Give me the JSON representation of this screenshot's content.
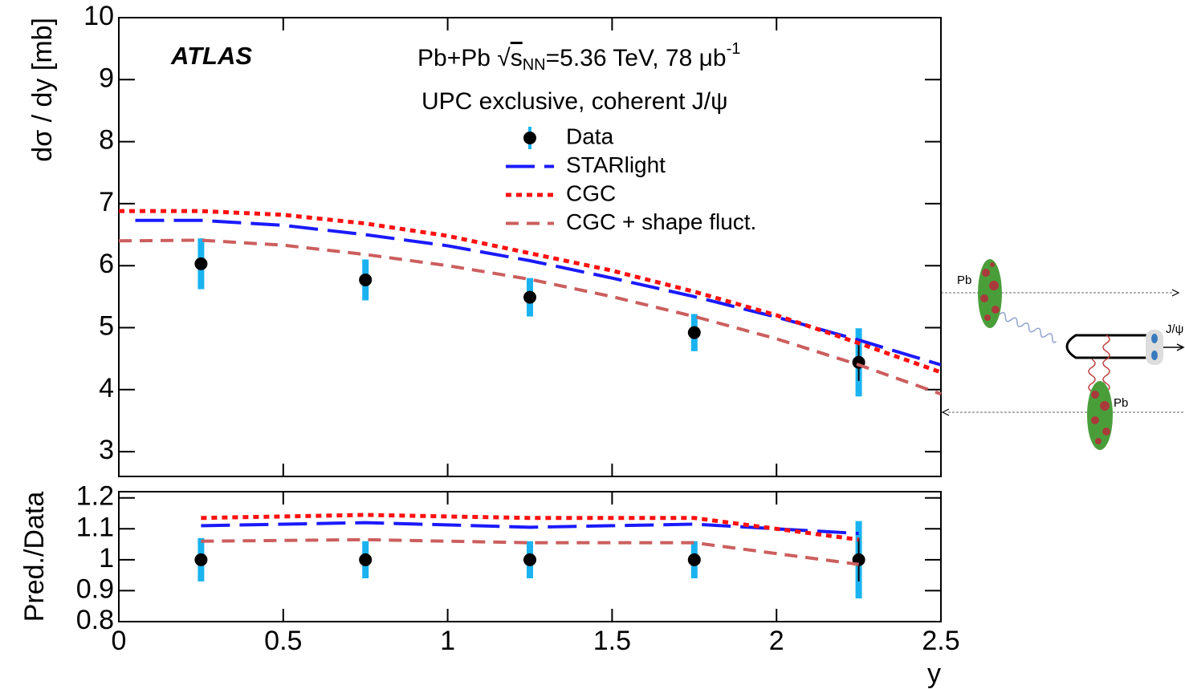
{
  "chart_data": [
    {
      "type": "line",
      "title_lines": [
        "ATLAS"
      ],
      "energy_label": [
        "Pb+Pb ",
        "√",
        "s",
        "NN",
        "=5.36 TeV, 78 μb",
        "-1"
      ],
      "process_label": "UPC exclusive, coherent J/ψ",
      "ylabel": "dσ / dy [mb]",
      "xlim": [
        0,
        2.5
      ],
      "ylim": [
        2.6,
        10
      ],
      "yticks": [
        3,
        4,
        5,
        6,
        7,
        8,
        9,
        10
      ],
      "legend": "top-center",
      "series": [
        {
          "name": "Data",
          "color": "#000000",
          "marker": true,
          "error_color": "#1ab3f0",
          "x": [
            0.25,
            0.75,
            1.25,
            1.75,
            2.25
          ],
          "values": [
            6.03,
            5.77,
            5.49,
            4.92,
            4.44
          ],
          "syst_errors": [
            0.41,
            0.33,
            0.31,
            0.3,
            0.55
          ],
          "stat_errors": [
            0.03,
            0.03,
            0.03,
            0.03,
            0.3
          ]
        },
        {
          "name": "STARlight",
          "color": "#1a1aff",
          "dash": "long",
          "x": [
            0.05,
            0.25,
            0.5,
            0.75,
            1.0,
            1.25,
            1.5,
            1.75,
            2.0,
            2.25,
            2.5
          ],
          "values": [
            6.73,
            6.73,
            6.65,
            6.5,
            6.32,
            6.08,
            5.8,
            5.5,
            5.17,
            4.8,
            4.4
          ]
        },
        {
          "name": "CGC",
          "color": "#ff1010",
          "dash": "dotted",
          "x": [
            0,
            0.25,
            0.5,
            0.75,
            1.0,
            1.25,
            1.5,
            1.75,
            2.0,
            2.25,
            2.5
          ],
          "values": [
            6.88,
            6.88,
            6.82,
            6.68,
            6.48,
            6.2,
            5.92,
            5.58,
            5.2,
            4.75,
            4.28
          ]
        },
        {
          "name": "CGC + shape fluct.",
          "color": "#cc5e5e",
          "dash": "dashed",
          "x": [
            0,
            0.25,
            0.5,
            0.75,
            1.0,
            1.25,
            1.5,
            1.75,
            2.0,
            2.25,
            2.5
          ],
          "values": [
            6.4,
            6.41,
            6.33,
            6.18,
            6.0,
            5.78,
            5.5,
            5.18,
            4.82,
            4.4,
            3.93
          ]
        }
      ]
    },
    {
      "type": "line",
      "ylabel": "Pred./Data",
      "xlabel": "y",
      "xlim": [
        0,
        2.5
      ],
      "xticks": [
        0,
        0.5,
        1,
        1.5,
        2,
        2.5
      ],
      "ylim": [
        0.8,
        1.22
      ],
      "yticks": [
        0.8,
        0.9,
        1,
        1.1,
        1.2
      ],
      "series": [
        {
          "color": "#000000",
          "marker": true,
          "error_color": "#1ab3f0",
          "x": [
            0.25,
            0.75,
            1.25,
            1.75,
            2.25
          ],
          "values": [
            1,
            1,
            1,
            1,
            1
          ],
          "syst_errors": [
            0.07,
            0.06,
            0.06,
            0.06,
            0.125
          ],
          "stat_errors": [
            0.005,
            0.005,
            0.005,
            0.005,
            0.07
          ]
        },
        {
          "color": "#1a1aff",
          "dash": "long",
          "x": [
            0.25,
            0.75,
            1.25,
            1.75,
            2.25
          ],
          "values": [
            1.11,
            1.12,
            1.105,
            1.115,
            1.085
          ]
        },
        {
          "color": "#ff1010",
          "dash": "dotted",
          "x": [
            0.25,
            0.75,
            1.25,
            1.75,
            2.25
          ],
          "values": [
            1.135,
            1.145,
            1.135,
            1.135,
            1.065
          ]
        },
        {
          "color": "#cc5e5e",
          "dash": "dashed",
          "x": [
            0.25,
            0.75,
            1.25,
            1.75,
            2.25
          ],
          "values": [
            1.06,
            1.065,
            1.055,
            1.055,
            0.985
          ]
        }
      ]
    }
  ],
  "diagram": {
    "labels": [
      "Pb",
      "J/ψ",
      "Pb"
    ]
  }
}
